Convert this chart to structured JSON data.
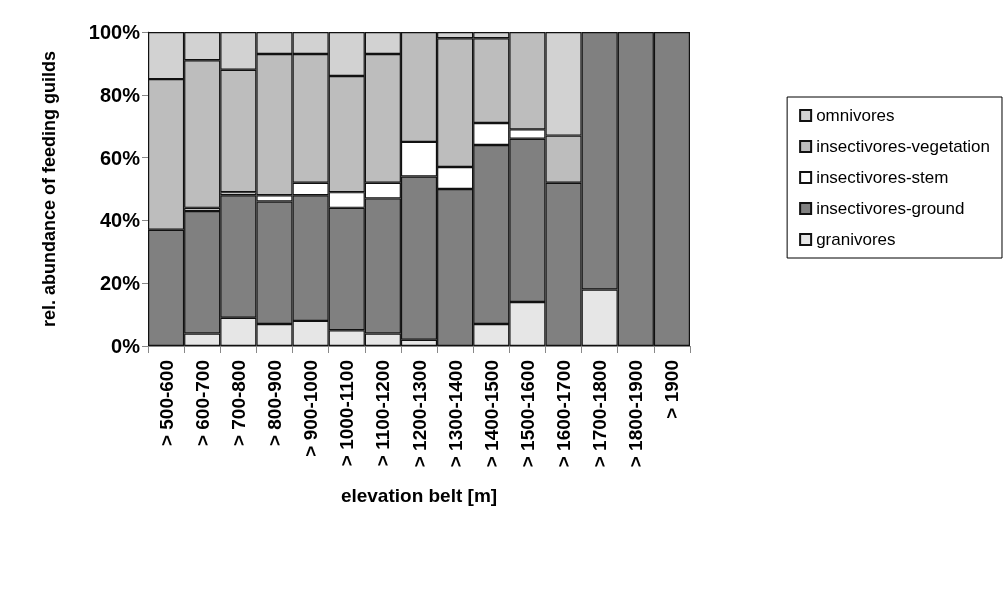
{
  "chart_data": {
    "type": "bar",
    "stacked": true,
    "xlabel": "elevation belt [m]",
    "ylabel": "rel. abundance of feeding guilds",
    "categories": [
      "> 500-600",
      "> 600-700",
      "> 700-800",
      "> 800-900",
      "> 900-1000",
      "> 1000-1100",
      "> 1100-1200",
      "> 1200-1300",
      "> 1300-1400",
      "> 1400-1500",
      "> 1500-1600",
      "> 1600-1700",
      "> 1700-1800",
      "> 1800-1900",
      "> 1900"
    ],
    "series": [
      {
        "name": "granivores",
        "color": "#e6e6e6",
        "values": [
          0,
          4,
          9,
          7,
          8,
          5,
          4,
          2,
          0,
          7,
          14,
          0,
          18,
          0,
          0
        ]
      },
      {
        "name": "insectivores-ground",
        "color": "#808080",
        "values": [
          37,
          39,
          39,
          39,
          40,
          39,
          43,
          52,
          50,
          57,
          52,
          52,
          82,
          100,
          100
        ]
      },
      {
        "name": "insectivores-stem",
        "color": "#ffffff",
        "values": [
          0,
          1,
          1,
          2,
          4,
          5,
          5,
          11,
          7,
          7,
          3,
          0,
          0,
          0,
          0
        ]
      },
      {
        "name": "insectivores-vegetation",
        "color": "#bdbdbd",
        "values": [
          48,
          47,
          39,
          45,
          41,
          37,
          41,
          35,
          41,
          27,
          31,
          15,
          0,
          0,
          0
        ]
      },
      {
        "name": "omnivores",
        "color": "#d2d2d2",
        "values": [
          15,
          9,
          12,
          7,
          7,
          14,
          7,
          0,
          2,
          2,
          0,
          33,
          0,
          0,
          0
        ]
      }
    ],
    "ylim": [
      0,
      100
    ],
    "yticks": [
      {
        "value": 0,
        "label": "0%"
      },
      {
        "value": 20,
        "label": "20%"
      },
      {
        "value": 40,
        "label": "40%"
      },
      {
        "value": 60,
        "label": "60%"
      },
      {
        "value": 80,
        "label": "80%"
      },
      {
        "value": 100,
        "label": "100%"
      }
    ],
    "grid": false,
    "legend": "right"
  }
}
